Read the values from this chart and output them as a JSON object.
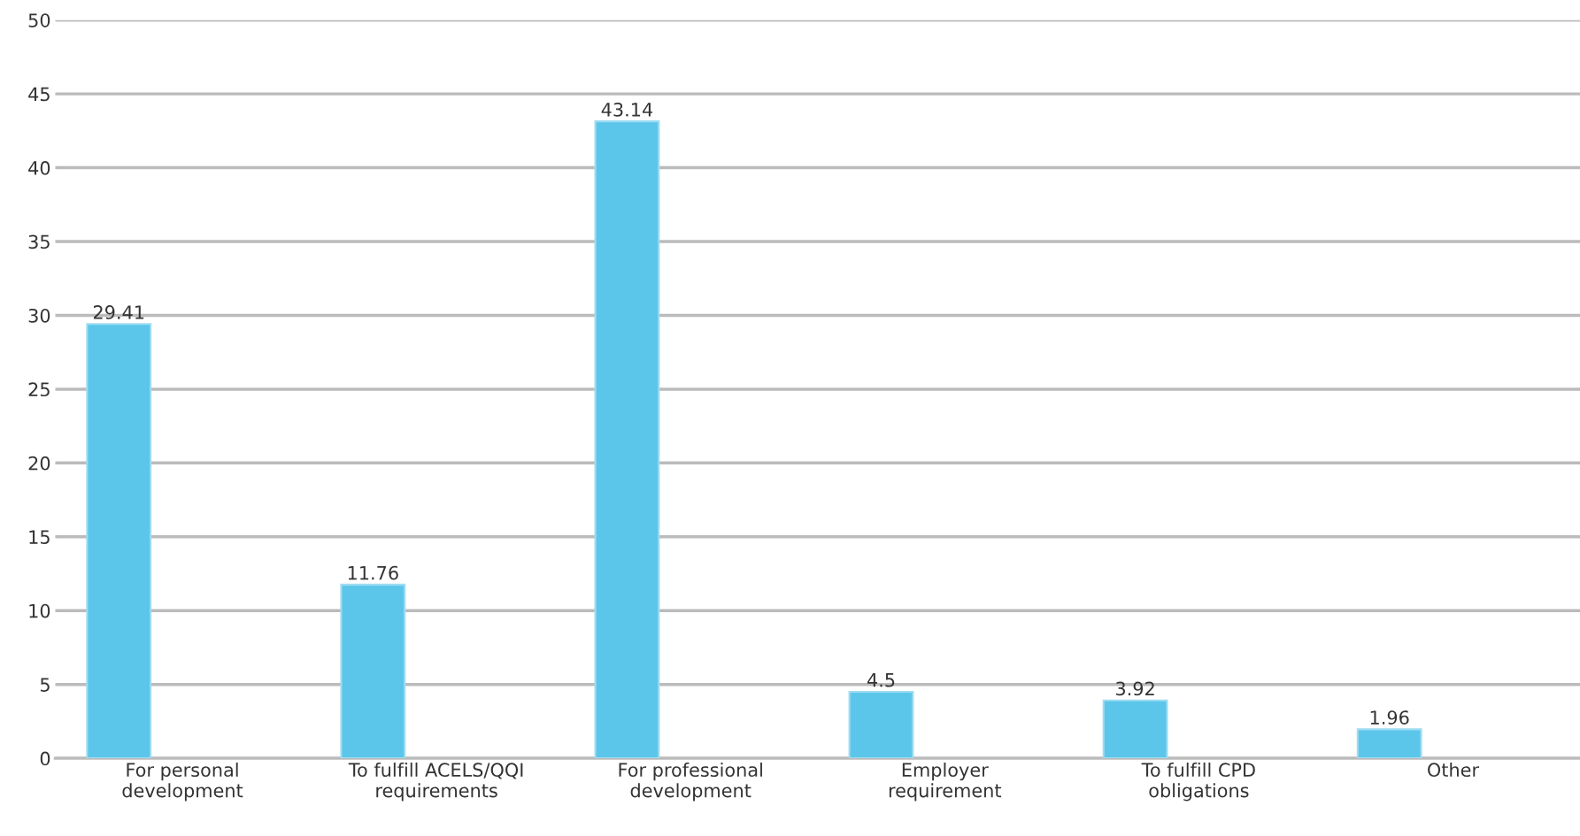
{
  "chart_data": {
    "type": "bar",
    "categories": [
      "For personal\ndevelopment",
      "To fulfill ACELS/QQI\nrequirements",
      "For professional\ndevelopment",
      "Employer\nrequirement",
      "To fulfill CPD\nobligations",
      "Other"
    ],
    "values": [
      29.41,
      11.76,
      43.14,
      4.5,
      3.92,
      1.96
    ],
    "color": "#5cc6ea",
    "data_labels": true,
    "grid": "y",
    "ylim": [
      0,
      50
    ],
    "yticks": [
      0,
      5,
      10,
      15,
      20,
      25,
      30,
      35,
      40,
      45,
      50
    ]
  }
}
